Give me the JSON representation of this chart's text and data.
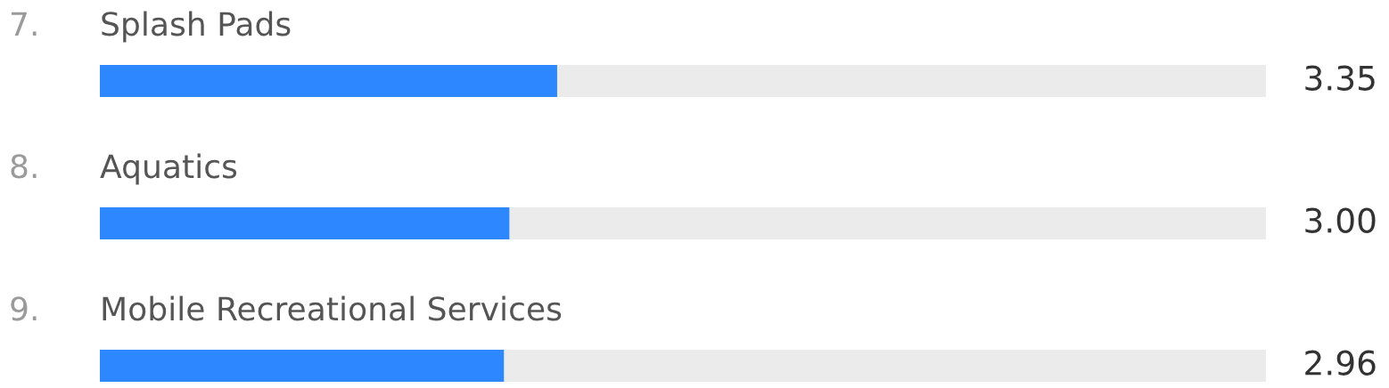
{
  "chart_data": {
    "type": "bar",
    "orientation": "horizontal",
    "categories": [
      "7. Splash Pads",
      "8. Aquatics",
      "9. Mobile Recreational Services"
    ],
    "values": [
      3.35,
      3.0,
      2.96
    ],
    "value_labels": [
      "3.35",
      "3.00",
      "2.96"
    ],
    "color": "#2d88ff"
  }
}
